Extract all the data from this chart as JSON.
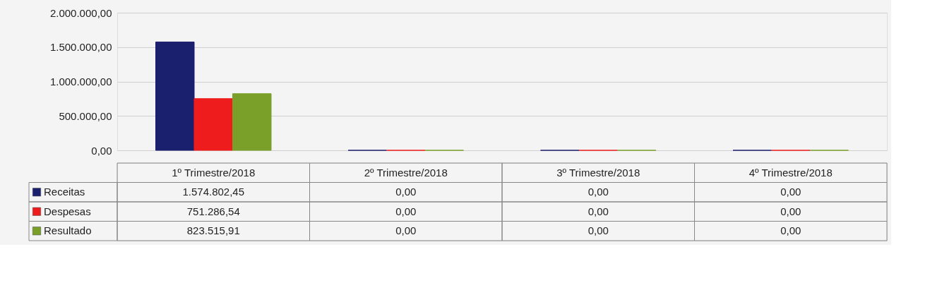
{
  "chart_data": {
    "type": "bar",
    "categories": [
      "1º Trimestre/2018",
      "2º Trimestre/2018",
      "3º Trimestre/2018",
      "4º Trimestre/2018"
    ],
    "series": [
      {
        "name": "Receitas",
        "color": "#1a1f6e",
        "values": [
          1574802.45,
          0,
          0,
          0
        ],
        "value_labels": [
          "1.574.802,45",
          "0,00",
          "0,00",
          "0,00"
        ]
      },
      {
        "name": "Despesas",
        "color": "#ee1c1c",
        "values": [
          751286.54,
          0,
          0,
          0
        ],
        "value_labels": [
          "751.286,54",
          "0,00",
          "0,00",
          "0,00"
        ]
      },
      {
        "name": "Resultado",
        "color": "#7aa02a",
        "values": [
          823515.91,
          0,
          0,
          0
        ],
        "value_labels": [
          "823.515,91",
          "0,00",
          "0,00",
          "0,00"
        ]
      }
    ],
    "ylim": [
      0,
      2000000
    ],
    "yticks": [
      {
        "value": 0,
        "label": "0,00"
      },
      {
        "value": 500000,
        "label": "500.000,00"
      },
      {
        "value": 1000000,
        "label": "1.000.000,00"
      },
      {
        "value": 1500000,
        "label": "1.500.000,00"
      },
      {
        "value": 2000000,
        "label": "2.000.000,00"
      }
    ],
    "grid": "y",
    "legend": "bottom left"
  }
}
